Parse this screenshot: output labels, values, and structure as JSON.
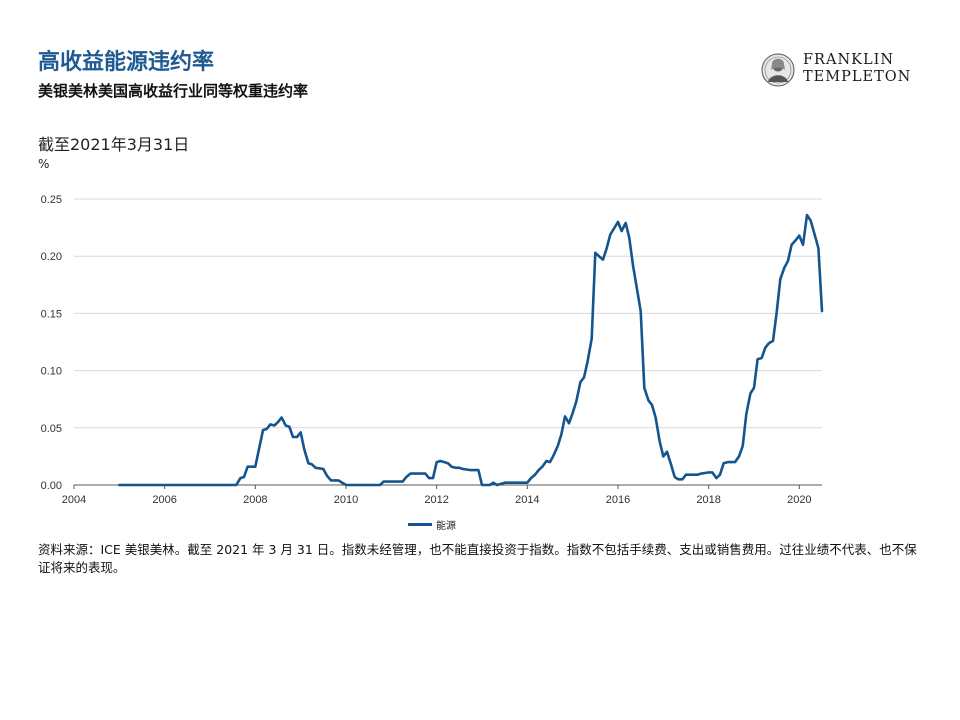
{
  "header": {
    "title": "高收益能源违约率",
    "subtitle": "美银美林美国高收益行业同等权重违约率",
    "as_of": "截至2021年3月31日",
    "unit": "%"
  },
  "logo": {
    "line1": "FRANKLIN",
    "line2": "TEMPLETON"
  },
  "footer": {
    "source": "资料来源：ICE 美银美林。截至 2021 年 3 月 31 日。指数未经管理，也不能直接投资于指数。指数不包括手续费、支出或销售费用。过往业绩不代表、也不保证将来的表现。"
  },
  "colors": {
    "accent": "#1f5a93",
    "series": "#14558f",
    "grid": "#d9d9d9"
  },
  "chart_data": {
    "type": "line",
    "title": "",
    "xlabel": "",
    "ylabel": "%",
    "xlim": [
      2004,
      2020.5
    ],
    "ylim": [
      0,
      0.25
    ],
    "x_ticks": [
      2004,
      2006,
      2008,
      2010,
      2012,
      2014,
      2016,
      2018,
      2020
    ],
    "y_ticks": [
      0,
      0.05,
      0.1,
      0.15,
      0.2,
      0.25
    ],
    "y_tick_labels": [
      "0.00",
      "0.05",
      "0.10",
      "0.15",
      "0.20",
      "0.25"
    ],
    "grid": true,
    "legend": "bottom-center",
    "series": [
      {
        "name": "能源",
        "x": [
          2005,
          2007.58,
          2007.67,
          2007.75,
          2007.83,
          2008,
          2008.17,
          2008.25,
          2008.33,
          2008.42,
          2008.5,
          2008.58,
          2008.67,
          2008.75,
          2008.83,
          2008.92,
          2009,
          2009.08,
          2009.17,
          2009.25,
          2009.33,
          2009.5,
          2009.58,
          2009.67,
          2009.75,
          2009.83,
          2010,
          2010.75,
          2010.83,
          2011.25,
          2011.33,
          2011.42,
          2011.5,
          2011.75,
          2011.83,
          2011.92,
          2012,
          2012.08,
          2012.17,
          2012.25,
          2012.33,
          2012.42,
          2012.5,
          2012.58,
          2012.75,
          2012.92,
          2013,
          2013.08,
          2013.17,
          2013.25,
          2013.33,
          2013.5,
          2013.58,
          2013.67,
          2014,
          2014.08,
          2014.17,
          2014.25,
          2014.33,
          2014.42,
          2014.5,
          2014.58,
          2014.67,
          2014.75,
          2014.83,
          2014.92,
          2015,
          2015.08,
          2015.17,
          2015.25,
          2015.33,
          2015.42,
          2015.5,
          2015.58,
          2015.67,
          2015.75,
          2015.83,
          2016,
          2016.08,
          2016.17,
          2016.25,
          2016.33,
          2016.5,
          2016.58,
          2016.67,
          2016.75,
          2016.83,
          2016.92,
          2017,
          2017.08,
          2017.17,
          2017.25,
          2017.33,
          2017.42,
          2017.5,
          2017.58,
          2017.75,
          2017.83,
          2018,
          2018.08,
          2018.17,
          2018.25,
          2018.33,
          2018.42,
          2018.5,
          2018.58,
          2018.67,
          2018.75,
          2018.83,
          2018.92,
          2019,
          2019.08,
          2019.17,
          2019.25,
          2019.33,
          2019.42,
          2019.5,
          2019.58,
          2019.67,
          2019.75,
          2019.83,
          2019.92,
          2020,
          2020.08,
          2020.17,
          2020.25,
          2020.33,
          2020.42,
          2020.5
        ],
        "values": [
          0,
          0,
          0.006,
          0.007,
          0.016,
          0.016,
          0.048,
          0.049,
          0.053,
          0.052,
          0.055,
          0.059,
          0.052,
          0.051,
          0.042,
          0.042,
          0.046,
          0.031,
          0.019,
          0.018,
          0.015,
          0.014,
          0.008,
          0.004,
          0.004,
          0.004,
          0,
          0,
          0.003,
          0.003,
          0.007,
          0.01,
          0.01,
          0.01,
          0.006,
          0.006,
          0.02,
          0.021,
          0.02,
          0.019,
          0.016,
          0.015,
          0.015,
          0.014,
          0.013,
          0.013,
          0,
          0,
          0,
          0.002,
          0,
          0.002,
          0.002,
          0.002,
          0.002,
          0.006,
          0.009,
          0.013,
          0.016,
          0.021,
          0.02,
          0.026,
          0.034,
          0.044,
          0.06,
          0.054,
          0.063,
          0.073,
          0.09,
          0.094,
          0.108,
          0.128,
          0.203,
          0.2,
          0.197,
          0.207,
          0.219,
          0.23,
          0.222,
          0.229,
          0.216,
          0.192,
          0.152,
          0.085,
          0.074,
          0.07,
          0.059,
          0.038,
          0.025,
          0.029,
          0.018,
          0.007,
          0.005,
          0.005,
          0.009,
          0.009,
          0.009,
          0.01,
          0.011,
          0.011,
          0.006,
          0.009,
          0.019,
          0.02,
          0.02,
          0.02,
          0.025,
          0.034,
          0.062,
          0.08,
          0.085,
          0.11,
          0.111,
          0.12,
          0.124,
          0.126,
          0.151,
          0.18,
          0.19,
          0.196,
          0.21,
          0.214,
          0.218,
          0.21,
          0.236,
          0.231,
          0.22,
          0.207,
          0.152
        ]
      }
    ]
  }
}
